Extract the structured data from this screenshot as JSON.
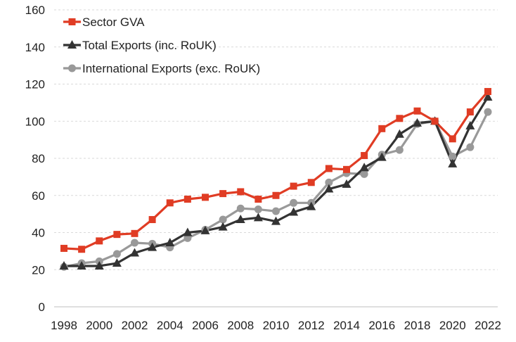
{
  "chart_data": {
    "type": "line",
    "title": "",
    "xlabel": "",
    "ylabel": "",
    "ylim": [
      0,
      160
    ],
    "yticks": [
      0,
      20,
      40,
      60,
      80,
      100,
      120,
      140,
      160
    ],
    "x": [
      1998,
      1999,
      2000,
      2001,
      2002,
      2003,
      2004,
      2005,
      2006,
      2007,
      2008,
      2009,
      2010,
      2011,
      2012,
      2013,
      2014,
      2015,
      2016,
      2017,
      2018,
      2019,
      2020,
      2021,
      2022
    ],
    "xtick_labels": [
      "1998",
      "2000",
      "2002",
      "2004",
      "2006",
      "2008",
      "2010",
      "2012",
      "2014",
      "2016",
      "2018",
      "2020",
      "2022"
    ],
    "grid": "horizontal dashed",
    "legend_position": "top-left",
    "series": [
      {
        "name": "Sector GVA",
        "color": "#e03c24",
        "marker": "square",
        "values": [
          31.5,
          31,
          35.5,
          39,
          39.5,
          47,
          56,
          58,
          59,
          61,
          62,
          58,
          60,
          65,
          67,
          74.5,
          74,
          81.5,
          96,
          101.5,
          105.5,
          100,
          90.5,
          105,
          116
        ]
      },
      {
        "name": "Total Exports (inc. RoUK)",
        "color": "#333333",
        "marker": "triangle",
        "values": [
          22,
          22,
          22,
          23.5,
          29,
          32,
          34.5,
          40,
          41,
          43,
          47,
          48,
          46,
          51,
          54,
          63.5,
          66,
          75,
          80.5,
          93,
          99,
          100,
          77,
          97.5,
          113
        ]
      },
      {
        "name": "International Exports (exc. RoUK)",
        "color": "#999999",
        "marker": "circle",
        "values": [
          21.5,
          23.5,
          24.5,
          28.5,
          34.5,
          34,
          32,
          37,
          41.5,
          47,
          53,
          52.5,
          51.5,
          56,
          56,
          67,
          72,
          71.5,
          82,
          84.5,
          98.5,
          100,
          81,
          86,
          105
        ]
      }
    ]
  }
}
